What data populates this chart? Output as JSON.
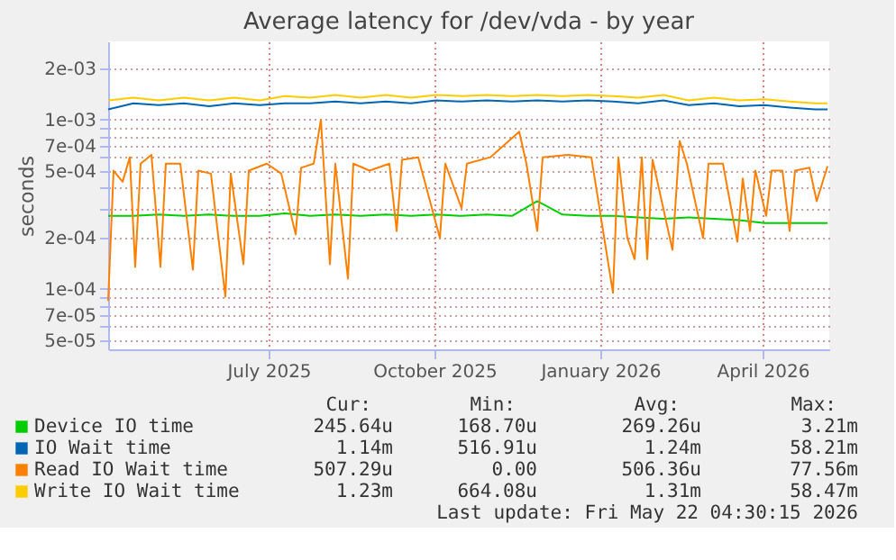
{
  "chart_data": {
    "type": "line",
    "title": "Average latency for /dev/vda - by year",
    "ylabel": "seconds",
    "x": [
      "2025-04-03",
      "2025-04-17",
      "2025-05-01",
      "2025-05-15",
      "2025-05-29",
      "2025-06-12",
      "2025-06-26",
      "2025-07-10",
      "2025-07-24",
      "2025-08-07",
      "2025-08-21",
      "2025-09-04",
      "2025-09-18",
      "2025-10-02",
      "2025-10-16",
      "2025-10-30",
      "2025-11-13",
      "2025-11-27",
      "2025-12-11",
      "2025-12-25",
      "2026-01-08",
      "2026-01-22",
      "2026-02-05",
      "2026-02-19",
      "2026-03-05",
      "2026-03-19",
      "2026-04-02",
      "2026-04-16",
      "2026-04-30",
      "2026-05-07"
    ],
    "series": [
      {
        "name": "Device IO time",
        "color": "#00cc00",
        "values": [
          0.00027,
          0.00027,
          0.000275,
          0.00027,
          0.000275,
          0.00027,
          0.00027,
          0.00028,
          0.00027,
          0.000275,
          0.00027,
          0.000275,
          0.00027,
          0.000275,
          0.00027,
          0.000275,
          0.00027,
          0.00033,
          0.000275,
          0.00027,
          0.00027,
          0.000265,
          0.00026,
          0.000265,
          0.00026,
          0.000255,
          0.000245,
          0.000245,
          0.000245,
          0.000245
        ]
      },
      {
        "name": "IO Wait time",
        "color": "#0066b3",
        "values": [
          0.00115,
          0.00125,
          0.00122,
          0.00125,
          0.0012,
          0.00125,
          0.00122,
          0.00125,
          0.00125,
          0.00128,
          0.00125,
          0.00128,
          0.00125,
          0.0013,
          0.00128,
          0.0013,
          0.00128,
          0.0013,
          0.00128,
          0.0013,
          0.00128,
          0.00125,
          0.0013,
          0.00122,
          0.00125,
          0.0012,
          0.00122,
          0.00118,
          0.00115,
          0.00115
        ]
      },
      {
        "name": "Read IO Wait time",
        "color": "#ff8000",
        "x": [
          "2025-04-03",
          "2025-04-06",
          "2025-04-11",
          "2025-04-15",
          "2025-04-18",
          "2025-04-21",
          "2025-04-27",
          "2025-05-02",
          "2025-05-05",
          "2025-05-13",
          "2025-05-20",
          "2025-05-23",
          "2025-05-30",
          "2025-06-07",
          "2025-06-10",
          "2025-06-17",
          "2025-06-20",
          "2025-06-30",
          "2025-07-08",
          "2025-07-16",
          "2025-07-19",
          "2025-07-26",
          "2025-07-30",
          "2025-08-04",
          "2025-08-07",
          "2025-08-14",
          "2025-08-17",
          "2025-08-26",
          "2025-09-06",
          "2025-09-10",
          "2025-09-13",
          "2025-09-22",
          "2025-10-04",
          "2025-10-07",
          "2025-10-16",
          "2025-10-19",
          "2025-11-01",
          "2025-11-17",
          "2025-11-21",
          "2025-11-27",
          "2025-11-30",
          "2025-12-14",
          "2025-12-27",
          "2026-01-08",
          "2026-01-11",
          "2026-01-16",
          "2026-01-20",
          "2026-01-24",
          "2026-01-27",
          "2026-01-30",
          "2026-02-10",
          "2026-02-14",
          "2026-02-18",
          "2026-02-27",
          "2026-03-02",
          "2026-03-10",
          "2026-03-18",
          "2026-03-21",
          "2026-03-25",
          "2026-03-28",
          "2026-04-03",
          "2026-04-06",
          "2026-04-12",
          "2026-04-16",
          "2026-04-19",
          "2026-04-27",
          "2026-05-01",
          "2026-05-07"
        ],
        "values": [
          8.5e-05,
          0.0005,
          0.00043,
          0.0006,
          0.000135,
          0.00055,
          0.00062,
          0.000135,
          0.00055,
          0.00055,
          0.00013,
          0.0005,
          0.00048,
          9e-05,
          0.00048,
          0.00014,
          0.0005,
          0.00055,
          0.00048,
          0.00021,
          0.00052,
          0.00055,
          0.001,
          0.00014,
          0.00055,
          0.000115,
          0.00055,
          0.0005,
          0.00055,
          0.00022,
          0.00058,
          0.0006,
          0.0002,
          0.00055,
          0.0003,
          0.00055,
          0.0006,
          0.00085,
          0.00055,
          0.00022,
          0.0006,
          0.00062,
          0.0006,
          9.5e-05,
          0.0006,
          0.0002,
          0.00015,
          0.0006,
          0.00015,
          0.00058,
          0.00017,
          0.00075,
          0.00055,
          0.0002,
          0.00055,
          0.00055,
          0.00019,
          0.00045,
          0.00022,
          0.0005,
          0.00027,
          0.0005,
          0.0005,
          0.00022,
          0.0005,
          0.00052,
          0.00033,
          0.00053
        ]
      },
      {
        "name": "Write IO Wait time",
        "color": "#ffcc00",
        "values": [
          0.0013,
          0.00135,
          0.0013,
          0.00135,
          0.0013,
          0.00135,
          0.0013,
          0.00138,
          0.00135,
          0.0014,
          0.00135,
          0.0014,
          0.00135,
          0.0014,
          0.00138,
          0.0014,
          0.00138,
          0.0014,
          0.00138,
          0.0014,
          0.00138,
          0.00135,
          0.0014,
          0.0013,
          0.00135,
          0.0013,
          0.00132,
          0.00128,
          0.00125,
          0.00125
        ]
      }
    ],
    "xlim": [
      "2025-04-03",
      "2026-05-08"
    ],
    "xticks": [
      {
        "value": "2025-07-01",
        "label": "July 2025"
      },
      {
        "value": "2025-10-01",
        "label": "October 2025"
      },
      {
        "value": "2026-01-01",
        "label": "January 2026"
      },
      {
        "value": "2026-04-01",
        "label": "April 2026"
      }
    ],
    "ylim": [
      4.4e-05,
      0.0029
    ],
    "log": true,
    "yticks": [
      {
        "value": 5e-05,
        "label": "5e-05"
      },
      {
        "value": 6e-05,
        "label": null
      },
      {
        "value": 7e-05,
        "label": "7e-05"
      },
      {
        "value": 8e-05,
        "label": null
      },
      {
        "value": 9e-05,
        "label": null
      },
      {
        "value": 0.0001,
        "label": "1e-04"
      },
      {
        "value": 0.0002,
        "label": "2e-04"
      },
      {
        "value": 0.0003,
        "label": null
      },
      {
        "value": 0.0004,
        "label": null
      },
      {
        "value": 0.0005,
        "label": "5e-04"
      },
      {
        "value": 0.0006,
        "label": null
      },
      {
        "value": 0.0007,
        "label": "7e-04"
      },
      {
        "value": 0.0008,
        "label": null
      },
      {
        "value": 0.0009,
        "label": null
      },
      {
        "value": 0.001,
        "label": "1e-03"
      },
      {
        "value": 0.002,
        "label": "2e-03"
      }
    ],
    "grid": true,
    "legend": "bottom",
    "marker": "none",
    "line_style": "solid",
    "annotations": [
      "Cur:",
      "Min:",
      "Avg:",
      "Max:",
      "245.64u",
      "168.70u",
      "269.26u",
      "3.21m",
      "1.14m",
      "516.91u",
      "1.24m",
      "58.21m",
      "507.29u",
      "0.00",
      "506.36u",
      "77.56m",
      "1.23m",
      "664.08u",
      "1.31m",
      "58.47m",
      "Last update: Fri May 22 04:30:15 2026"
    ]
  }
}
